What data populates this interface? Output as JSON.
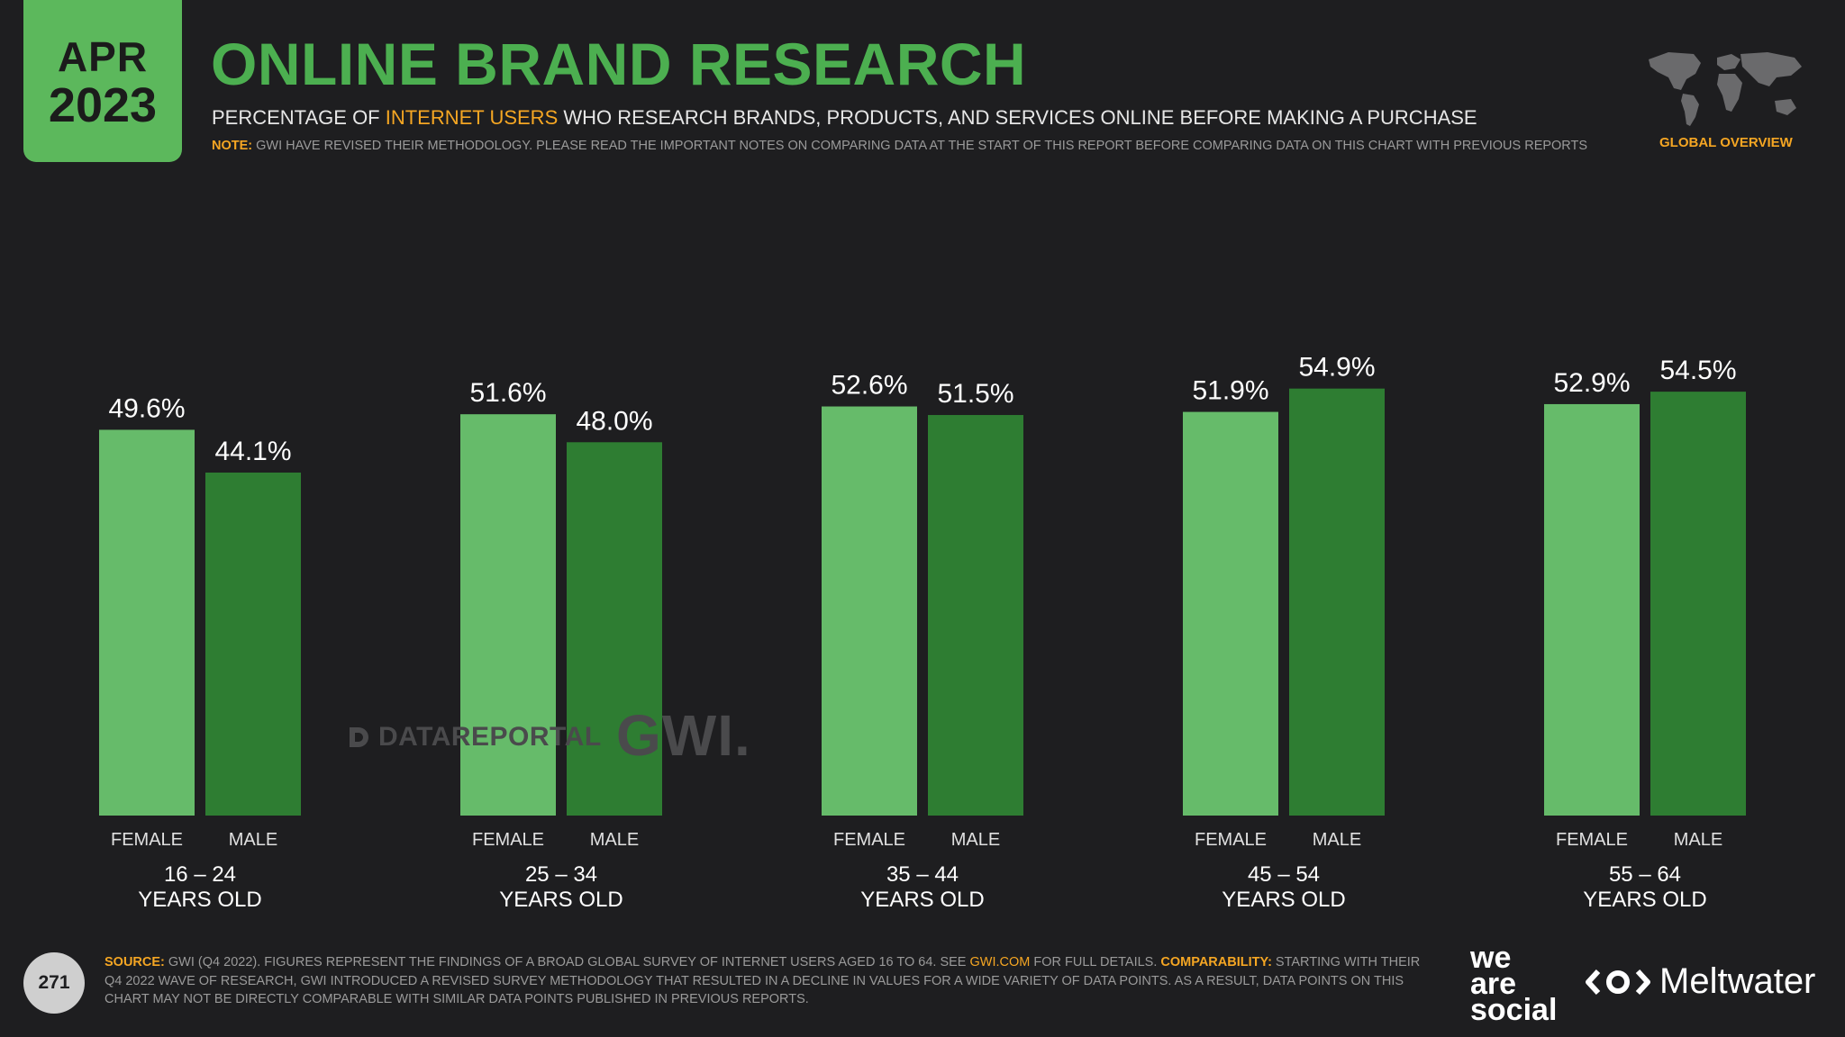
{
  "badge": {
    "month": "APR",
    "year": "2023"
  },
  "title": "ONLINE BRAND RESEARCH",
  "subtitle": {
    "before": "PERCENTAGE OF ",
    "highlight": "INTERNET USERS",
    "after": " WHO RESEARCH BRANDS, PRODUCTS, AND SERVICES ONLINE BEFORE MAKING A PURCHASE"
  },
  "note": {
    "label": "NOTE:",
    "text": " GWI HAVE REVISED THEIR METHODOLOGY. PLEASE READ THE IMPORTANT NOTES ON COMPARING DATA AT THE START OF THIS REPORT BEFORE COMPARING DATA ON THIS CHART WITH PREVIOUS REPORTS"
  },
  "global_label": "GLOBAL OVERVIEW",
  "watermarks": {
    "datareportal": "DATAREPORTAL",
    "gwi": "GWI."
  },
  "footer": {
    "page": "271",
    "source_label": "SOURCE:",
    "source_text": " GWI (Q4 2022). FIGURES REPRESENT THE FINDINGS OF A BROAD GLOBAL SURVEY OF INTERNET USERS AGED 16 TO 64. SEE ",
    "source_link": "GWI.COM",
    "source_after": " FOR FULL DETAILS. ",
    "comparability_label": "COMPARABILITY:",
    "comparability_text": " STARTING WITH THEIR Q4 2022 WAVE OF RESEARCH, GWI INTRODUCED A REVISED SURVEY METHODOLOGY THAT RESULTED IN A DECLINE IN VALUES FOR A WIDE VARIETY OF DATA POINTS. AS A RESULT, DATA POINTS ON THIS CHART MAY NOT BE DIRECTLY COMPARABLE WITH SIMILAR DATA POINTS PUBLISHED IN PREVIOUS REPORTS.",
    "was_logo": [
      "we",
      "are",
      "social"
    ],
    "meltwater": "Meltwater"
  },
  "colors": {
    "female": "#66bb6a",
    "male": "#2e7d32",
    "accent": "#f5a623",
    "title": "#4caf50"
  },
  "chart_data": {
    "type": "bar",
    "title": "ONLINE BRAND RESEARCH",
    "categories": [
      {
        "range": "16 – 24",
        "unit": "YEARS OLD"
      },
      {
        "range": "25 – 34",
        "unit": "YEARS OLD"
      },
      {
        "range": "35 – 44",
        "unit": "YEARS OLD"
      },
      {
        "range": "45 – 54",
        "unit": "YEARS OLD"
      },
      {
        "range": "55 – 64",
        "unit": "YEARS OLD"
      }
    ],
    "series": [
      {
        "name": "FEMALE",
        "values": [
          49.6,
          51.6,
          52.6,
          51.9,
          52.9
        ],
        "labels": [
          "49.6%",
          "51.6%",
          "52.6%",
          "51.9%",
          "52.9%"
        ]
      },
      {
        "name": "MALE",
        "values": [
          44.1,
          48.0,
          51.5,
          54.9,
          54.5
        ],
        "labels": [
          "44.1%",
          "48.0%",
          "51.5%",
          "54.9%",
          "54.5%"
        ]
      }
    ],
    "ylim": [
      0,
      60
    ],
    "grid": false,
    "legend": "none"
  }
}
